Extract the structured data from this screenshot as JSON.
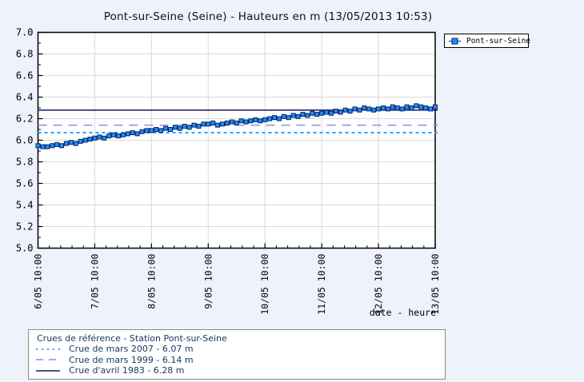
{
  "page": {
    "background_color": "#edf2fb"
  },
  "chart_data": {
    "type": "line",
    "title": "Pont-sur-Seine (Seine) - Hauteurs en m (13/05/2013 10:53)",
    "xlabel": "date - heure",
    "ylabel": "",
    "ylim": [
      5.0,
      7.0
    ],
    "y_tick_step": 0.2,
    "y_tick_labels": [
      "5.0",
      "5.2",
      "5.4",
      "5.6",
      "5.8",
      "6.0",
      "6.2",
      "6.4",
      "6.6",
      "6.8",
      "7.0"
    ],
    "x_tick_labels": [
      "6/05 10:00",
      "7/05 10:00",
      "8/05 10:00",
      "9/05 10:00",
      "10/05 10:00",
      "11/05 10:00",
      "12/05 10:00",
      "13/05 10:00"
    ],
    "x_hours_span": 168,
    "grid": true,
    "legend_position": "top-right",
    "colors": {
      "plot_background": "#ffffff",
      "gridline": "#d9d9d9",
      "axis": "#000000"
    },
    "series": [
      {
        "name": "Pont-sur-Seine",
        "x_step_hours": 2,
        "marker_color": "#1e8fff",
        "line_color": "#0a2161",
        "values": [
          5.95,
          5.94,
          5.94,
          5.95,
          5.96,
          5.95,
          5.97,
          5.98,
          5.97,
          5.99,
          6.0,
          6.01,
          6.02,
          6.03,
          6.02,
          6.04,
          6.05,
          6.04,
          6.05,
          6.06,
          6.07,
          6.06,
          6.08,
          6.09,
          6.09,
          6.1,
          6.09,
          6.11,
          6.1,
          6.12,
          6.11,
          6.13,
          6.12,
          6.14,
          6.13,
          6.15,
          6.15,
          6.16,
          6.14,
          6.15,
          6.16,
          6.17,
          6.16,
          6.18,
          6.17,
          6.18,
          6.19,
          6.18,
          6.19,
          6.2,
          6.21,
          6.2,
          6.22,
          6.21,
          6.23,
          6.22,
          6.24,
          6.23,
          6.25,
          6.24,
          6.25,
          6.26,
          6.25,
          6.27,
          6.26,
          6.28,
          6.27,
          6.29,
          6.28,
          6.3,
          6.29,
          6.28,
          6.29,
          6.3,
          6.29,
          6.31,
          6.3,
          6.29,
          6.31,
          6.3,
          6.32,
          6.31,
          6.3,
          6.29,
          6.31
        ]
      }
    ],
    "reference_lines": [
      {
        "label": "Crue de mars 2007 - 6.07 m",
        "value": 6.07,
        "style": "dotted",
        "color": "#2ba2ff"
      },
      {
        "label": "Crue de mars 1999 - 6.14 m",
        "value": 6.14,
        "style": "dashed",
        "color": "#8c8ce8"
      },
      {
        "label": "Crue d'avril 1983 - 6.28 m",
        "value": 6.28,
        "style": "solid",
        "color": "#16166b"
      }
    ],
    "reference_legend": {
      "title": "Crues de référence - Station Pont-sur-Seine"
    }
  }
}
